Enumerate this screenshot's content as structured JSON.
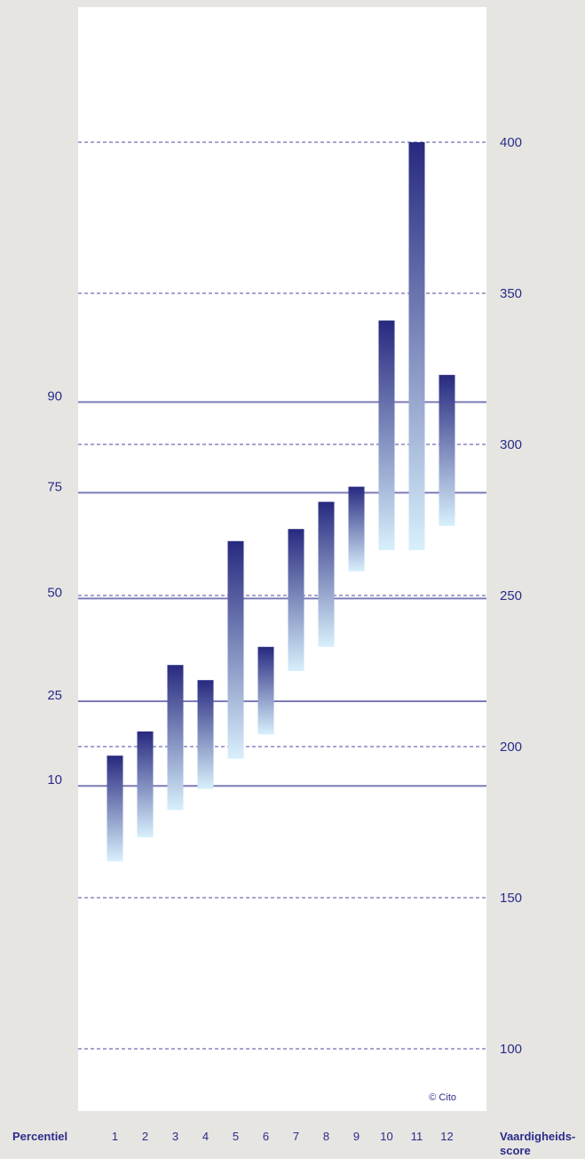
{
  "colors": {
    "background": "#e6e5e2",
    "plot_background": "#ffffff",
    "text": "#2b2c8a",
    "percentile_line": "#7b7bb8",
    "score_gridline": "#4a4aa0",
    "bar_top": "#27297f",
    "bar_bottom": "#d8f0fc"
  },
  "chart_data": {
    "type": "bar",
    "subtype": "floating-range",
    "categories": [
      "1",
      "2",
      "3",
      "4",
      "5",
      "6",
      "7",
      "8",
      "9",
      "10",
      "11",
      "12"
    ],
    "ranges": [
      {
        "low": 162,
        "high": 197
      },
      {
        "low": 170,
        "high": 205
      },
      {
        "low": 179,
        "high": 227
      },
      {
        "low": 186,
        "high": 222
      },
      {
        "low": 196,
        "high": 268
      },
      {
        "low": 204,
        "high": 233
      },
      {
        "low": 225,
        "high": 272
      },
      {
        "low": 233,
        "high": 281
      },
      {
        "low": 258,
        "high": 286
      },
      {
        "low": 265,
        "high": 341
      },
      {
        "low": 265,
        "high": 400
      },
      {
        "low": 273,
        "high": 323
      }
    ],
    "ylim": [
      85,
      445
    ],
    "yticks": [
      100,
      150,
      200,
      250,
      300,
      350,
      400
    ],
    "percentile_lines": [
      {
        "label": "10",
        "value": 187
      },
      {
        "label": "25",
        "value": 215
      },
      {
        "label": "50",
        "value": 249
      },
      {
        "label": "75",
        "value": 284
      },
      {
        "label": "90",
        "value": 314
      }
    ],
    "xlabel_left": "Percentiel",
    "ylabel_right": [
      "Vaardigheids-",
      "score"
    ],
    "copyright": "© Cito"
  }
}
